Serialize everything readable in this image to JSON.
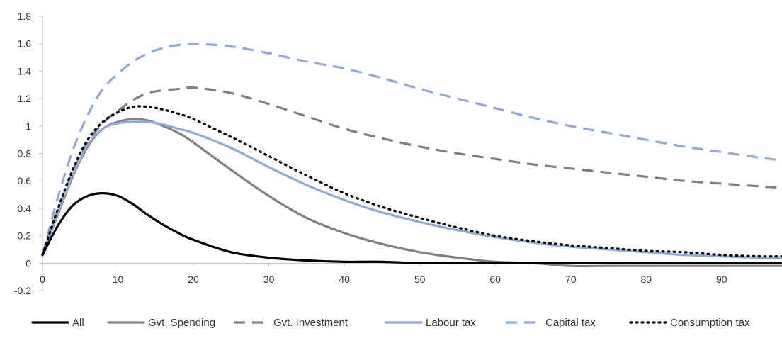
{
  "chart_data": {
    "type": "line",
    "title": "",
    "xlabel": "",
    "ylabel": "",
    "xlim": [
      0,
      98
    ],
    "ylim": [
      -0.2,
      1.8
    ],
    "x_ticks": [
      0,
      10,
      20,
      30,
      40,
      50,
      60,
      70,
      80,
      90
    ],
    "y_ticks": [
      -0.2,
      0,
      0.2,
      0.4,
      0.6,
      0.8,
      1,
      1.2,
      1.4,
      1.6,
      1.8
    ],
    "x_tick_labels": [
      "0",
      "10",
      "20",
      "30",
      "40",
      "50",
      "60",
      "70",
      "80",
      "90"
    ],
    "y_tick_labels": [
      "-0.2",
      "0",
      "0.2",
      "0.4",
      "0.6",
      "0.8",
      "1",
      "1.2",
      "1.4",
      "1.6",
      "1.8"
    ],
    "grid": false,
    "legend_position": "bottom",
    "x": [
      0,
      2,
      4,
      6,
      8,
      10,
      12,
      14,
      16,
      18,
      20,
      25,
      30,
      35,
      40,
      45,
      50,
      55,
      60,
      65,
      70,
      75,
      80,
      85,
      90,
      95,
      98
    ],
    "series": [
      {
        "name": "All",
        "color": "#000000",
        "style": "solid",
        "values": [
          0.06,
          0.27,
          0.42,
          0.49,
          0.51,
          0.49,
          0.43,
          0.35,
          0.28,
          0.22,
          0.17,
          0.08,
          0.04,
          0.02,
          0.01,
          0.01,
          0.0,
          0.0,
          0.0,
          0.0,
          0.0,
          0.0,
          0.0,
          0.0,
          0.0,
          0.0,
          0.0
        ]
      },
      {
        "name": "Gvt. Spending",
        "color": "#808080",
        "style": "solid",
        "values": [
          0.06,
          0.35,
          0.63,
          0.85,
          0.98,
          1.03,
          1.05,
          1.04,
          1.0,
          0.95,
          0.88,
          0.68,
          0.49,
          0.33,
          0.22,
          0.14,
          0.08,
          0.04,
          0.01,
          0.0,
          -0.02,
          -0.02,
          -0.02,
          -0.02,
          -0.02,
          -0.02,
          -0.02
        ]
      },
      {
        "name": "Gvt. Investment",
        "color": "#808080",
        "style": "dashed",
        "values": [
          0.06,
          0.38,
          0.66,
          0.88,
          1.02,
          1.11,
          1.19,
          1.24,
          1.26,
          1.27,
          1.28,
          1.24,
          1.16,
          1.07,
          0.98,
          0.91,
          0.85,
          0.8,
          0.76,
          0.72,
          0.69,
          0.66,
          0.63,
          0.6,
          0.58,
          0.56,
          0.55
        ]
      },
      {
        "name": "Labour tax",
        "color": "#8EA9DB",
        "style": "solid",
        "values": [
          0.06,
          0.36,
          0.64,
          0.86,
          0.98,
          1.02,
          1.03,
          1.03,
          1.01,
          0.98,
          0.95,
          0.84,
          0.7,
          0.57,
          0.46,
          0.37,
          0.3,
          0.24,
          0.19,
          0.15,
          0.12,
          0.1,
          0.08,
          0.06,
          0.05,
          0.04,
          0.04
        ]
      },
      {
        "name": "Capital tax",
        "color": "#8EA9DB",
        "style": "dashed",
        "values": [
          0.06,
          0.47,
          0.82,
          1.08,
          1.27,
          1.38,
          1.47,
          1.53,
          1.57,
          1.59,
          1.6,
          1.58,
          1.53,
          1.47,
          1.42,
          1.35,
          1.27,
          1.2,
          1.13,
          1.06,
          1.0,
          0.95,
          0.9,
          0.85,
          0.81,
          0.77,
          0.75
        ]
      },
      {
        "name": "Consumption tax",
        "color": "#000000",
        "style": "dotted",
        "values": [
          0.06,
          0.39,
          0.68,
          0.9,
          1.03,
          1.1,
          1.14,
          1.14,
          1.12,
          1.09,
          1.05,
          0.92,
          0.78,
          0.64,
          0.51,
          0.41,
          0.33,
          0.26,
          0.2,
          0.16,
          0.13,
          0.11,
          0.09,
          0.08,
          0.06,
          0.05,
          0.05
        ]
      }
    ]
  }
}
